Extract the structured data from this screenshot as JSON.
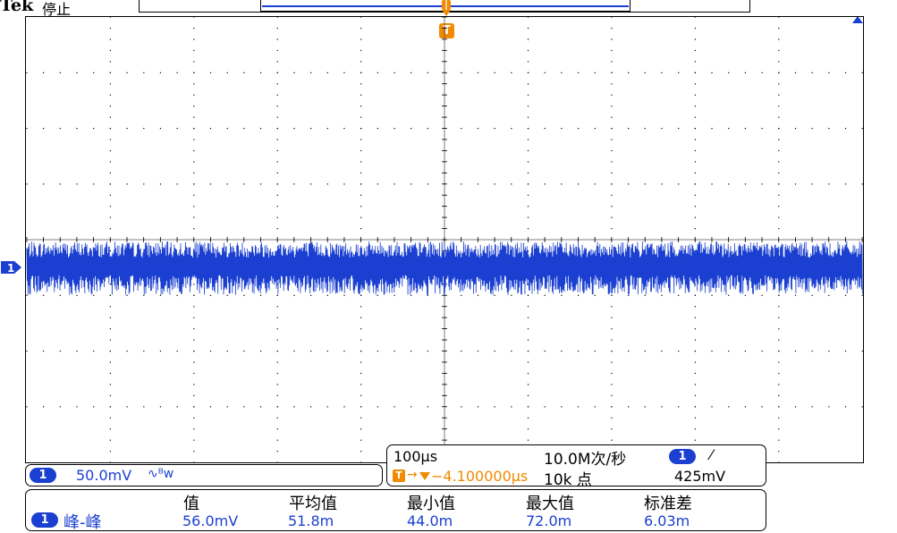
{
  "header": {
    "brand": "Tek",
    "status": "停止"
  },
  "trigger_marker": "T",
  "channel_marker": "1",
  "colors": {
    "trace": "#1a3fd1",
    "accent_orange": "#f08a00",
    "grid": "#000000"
  },
  "channel_panel": {
    "channel": "1",
    "scale": "50.0mV",
    "bandwidth_symbol": "∿ᴮw"
  },
  "horizontal_panel": {
    "timebase": "100µs",
    "sample_rate": "10.0M次/秒",
    "trigger_position": "−4.100000µs",
    "trigger_marker": "T",
    "record_length": "10k 点",
    "trigger_channel": "1",
    "trigger_slope": "⁄",
    "trigger_level": "425mV"
  },
  "measurements": {
    "headers": [
      "值",
      "平均值",
      "最小值",
      "最大值",
      "标准差"
    ],
    "channel": "1",
    "name": "峰-峰",
    "value": "56.0mV",
    "mean": "51.8m",
    "min": "44.0m",
    "max": "72.0m",
    "std_dev": "6.03m"
  }
}
